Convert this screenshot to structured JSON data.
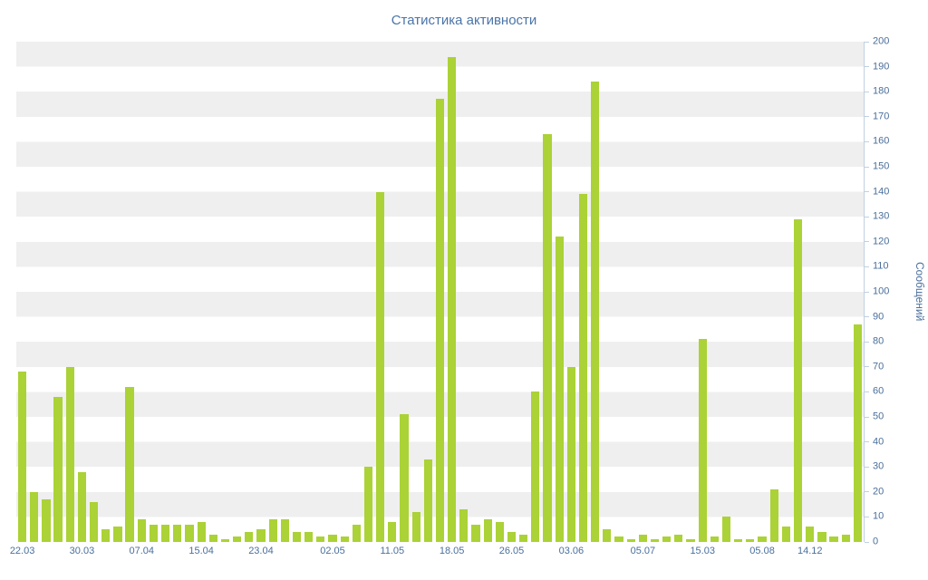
{
  "chart_data": {
    "type": "bar",
    "title": "Статистика активности",
    "ylabel": "Сообщений",
    "xlabel": "",
    "ylim": [
      0,
      200
    ],
    "ytick_step": 10,
    "grid": "horizontal-stripes-every-10",
    "legend": "none",
    "bar_color": "#abd236",
    "stripe_color": "#efefef",
    "plot_background": "#ffffff",
    "axis_color": "#c0d0e0",
    "text_color": "#4a6f9c",
    "title_color": "#4a74a8",
    "values": [
      68,
      20,
      17,
      58,
      70,
      28,
      16,
      5,
      6,
      62,
      9,
      7,
      7,
      7,
      7,
      8,
      3,
      1,
      2,
      4,
      5,
      9,
      9,
      4,
      4,
      2,
      3,
      2,
      7,
      30,
      140,
      8,
      51,
      12,
      33,
      177,
      194,
      13,
      7,
      9,
      8,
      4,
      3,
      60,
      163,
      122,
      70,
      139,
      184,
      5,
      2,
      1,
      3,
      1,
      2,
      3,
      1,
      81,
      2,
      10,
      1,
      1,
      2,
      21,
      6,
      129,
      6,
      4,
      2,
      3,
      87
    ],
    "x_tick_labels": [
      {
        "label": "22.03",
        "index": 0
      },
      {
        "label": "30.03",
        "index": 5
      },
      {
        "label": "07.04",
        "index": 10
      },
      {
        "label": "15.04",
        "index": 15
      },
      {
        "label": "23.04",
        "index": 20
      },
      {
        "label": "02.05",
        "index": 26
      },
      {
        "label": "11.05",
        "index": 31
      },
      {
        "label": "18.05",
        "index": 36
      },
      {
        "label": "26.05",
        "index": 41
      },
      {
        "label": "03.06",
        "index": 46
      },
      {
        "label": "05.07",
        "index": 52
      },
      {
        "label": "15.03",
        "index": 57
      },
      {
        "label": "05.08",
        "index": 62
      },
      {
        "label": "14.12",
        "index": 66
      }
    ]
  }
}
